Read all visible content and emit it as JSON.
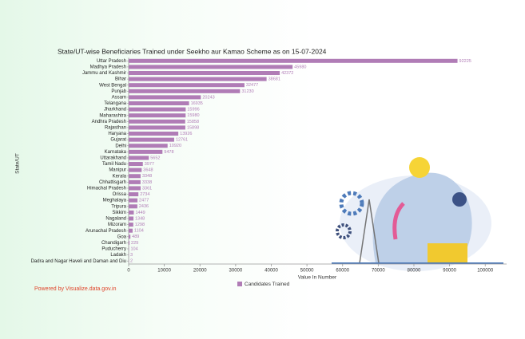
{
  "chart_data": {
    "type": "hbar",
    "title": "State/UT-wise Beneficiaries Trained under Seekho aur Kamao Scheme as on 15-07-2024",
    "x_label": "Value In Number",
    "y_label": "State/UT",
    "footer": "Powered by Visualize.data.gov.in",
    "categories": [
      "Uttar Pradesh",
      "Madhya Pradesh",
      "Jammu and Kashmir",
      "Bihar",
      "West Bengal",
      "Punjab",
      "Assam",
      "Telangana",
      "Jharkhand",
      "Maharashtra",
      "Andhra Pradesh",
      "Rajasthan",
      "Haryana",
      "Gujarat",
      "Delhi",
      "Karnataka",
      "Uttarakhand",
      "Tamil Nadu",
      "Manipur",
      "Kerala",
      "Chhattisgarh",
      "Himachal Pradesh",
      "Orissa",
      "Meghalaya",
      "Tripura",
      "Sikkim",
      "Nagaland",
      "Mizoram",
      "Arunachal Pradesh",
      "Goa",
      "Chandigarh",
      "Puducherry",
      "Ladakh",
      "Dadra and Nagar Haveli and Daman and Diu"
    ],
    "series": [
      {
        "name": "Candidates Trained",
        "color": "#b07cb6",
        "values": [
          92225,
          45980,
          42372,
          38681,
          32477,
          31230,
          20243,
          16935,
          15996,
          15980,
          15858,
          15898,
          13926,
          12761,
          10920,
          9478,
          5652,
          3977,
          3648,
          3348,
          3338,
          3361,
          2734,
          2477,
          2436,
          1449,
          1348,
          1298,
          1104,
          489,
          229,
          104,
          3,
          2
        ]
      }
    ],
    "xlim": [
      0,
      106000
    ],
    "xticks": [
      0,
      10000,
      20000,
      30000,
      40000,
      50000,
      60000,
      70000,
      80000,
      90000,
      100000
    ],
    "legend": "bottom"
  }
}
